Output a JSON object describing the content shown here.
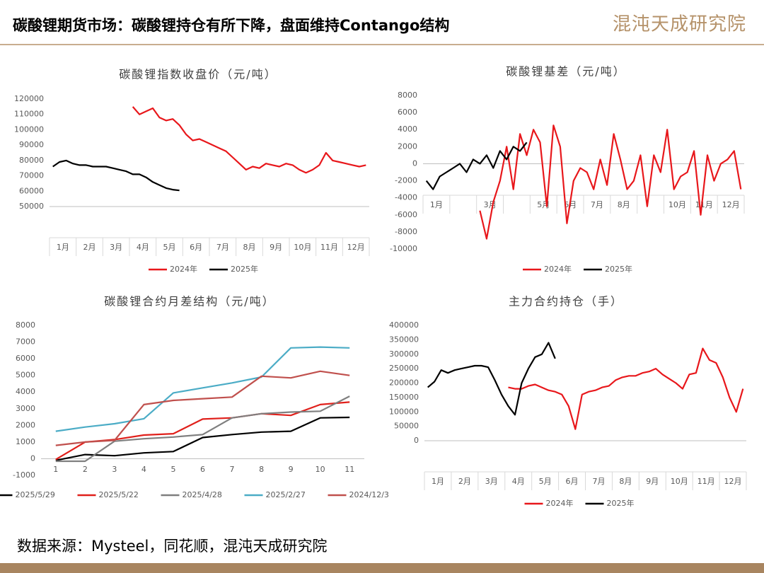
{
  "header": {
    "title": "碳酸锂期货市场：碳酸锂持仓有所下降，盘面维持Contango结构",
    "logo": "混沌天成研究院"
  },
  "footer": {
    "source": "数据来源：Mysteel，同花顺，混沌天成研究院"
  },
  "chart_data": [
    {
      "type": "line",
      "title": "碳酸锂指数收盘价（元/吨）",
      "legend": "bottom",
      "grid": false,
      "categories": [
        "1月",
        null,
        null,
        null,
        "2月",
        null,
        null,
        null,
        "3月",
        null,
        null,
        null,
        "4月",
        null,
        null,
        null,
        "5月",
        null,
        null,
        null,
        "6月",
        null,
        null,
        null,
        "7月",
        null,
        null,
        null,
        "8月",
        null,
        null,
        null,
        "9月",
        null,
        null,
        null,
        "10月",
        null,
        null,
        null,
        "11月",
        null,
        null,
        null,
        "12月",
        null,
        null,
        null
      ],
      "ylim": [
        50000,
        120000
      ],
      "yticks": [
        50000,
        60000,
        70000,
        80000,
        90000,
        100000,
        110000,
        120000
      ],
      "series": [
        {
          "name": "2024年",
          "color": "#e8171b",
          "values": [
            null,
            null,
            null,
            null,
            null,
            null,
            null,
            null,
            null,
            null,
            null,
            null,
            115000,
            110000,
            112000,
            114000,
            108000,
            106000,
            107000,
            103000,
            97000,
            93000,
            94000,
            92000,
            90000,
            88000,
            86000,
            82000,
            78000,
            74000,
            76000,
            75000,
            78000,
            77000,
            76000,
            78000,
            77000,
            74000,
            72000,
            74000,
            77000,
            85000,
            80000,
            79000,
            78000,
            77000,
            76000,
            77000
          ]
        },
        {
          "name": "2025年",
          "color": "#000000",
          "values": [
            76000,
            79000,
            80000,
            78000,
            77000,
            77000,
            76000,
            76000,
            76000,
            75000,
            74000,
            73000,
            71000,
            71000,
            69000,
            66000,
            64000,
            62000,
            61000,
            60500,
            null,
            null,
            null,
            null,
            null,
            null,
            null,
            null,
            null,
            null,
            null,
            null,
            null,
            null,
            null,
            null,
            null,
            null,
            null,
            null,
            null,
            null,
            null,
            null,
            null,
            null,
            null,
            null
          ]
        }
      ]
    },
    {
      "type": "line",
      "title": "碳酸锂基差（元/吨）",
      "legend": "bottom",
      "grid": false,
      "categories": [
        "1月",
        null,
        null,
        null,
        null,
        null,
        null,
        null,
        "3月",
        null,
        null,
        null,
        null,
        null,
        null,
        null,
        "5月",
        null,
        null,
        null,
        "6月",
        null,
        null,
        null,
        "7月",
        null,
        null,
        null,
        "8月",
        null,
        null,
        null,
        null,
        null,
        null,
        null,
        "10月",
        null,
        null,
        null,
        "11月",
        null,
        null,
        null,
        "12月",
        null,
        null,
        null
      ],
      "ylim": [
        -10000,
        8000
      ],
      "yticks": [
        -10000,
        -8000,
        -6000,
        -4000,
        -2000,
        0,
        2000,
        4000,
        6000,
        8000
      ],
      "series": [
        {
          "name": "2024年",
          "color": "#e8171b",
          "values": [
            null,
            null,
            null,
            null,
            null,
            null,
            null,
            null,
            -5500,
            -8800,
            -4500,
            -2000,
            2000,
            -3000,
            3500,
            1000,
            4000,
            2500,
            -5000,
            4500,
            2000,
            -7000,
            -2000,
            -500,
            -1000,
            -3000,
            500,
            -2500,
            3500,
            500,
            -3000,
            -2000,
            1000,
            -5000,
            1000,
            -1000,
            4000,
            -3000,
            -1500,
            -1000,
            1500,
            -6000,
            1000,
            -2000,
            0,
            500,
            1500,
            -3000
          ]
        },
        {
          "name": "2025年",
          "color": "#000000",
          "values": [
            -2000,
            -3000,
            -1500,
            -1000,
            -500,
            0,
            -1000,
            500,
            0,
            1000,
            -500,
            1500,
            500,
            2000,
            1500,
            2500,
            null,
            null,
            null,
            null,
            null,
            null,
            null,
            null,
            null,
            null,
            null,
            null,
            null,
            null,
            null,
            null,
            null,
            null,
            null,
            null,
            null,
            null,
            null,
            null,
            null,
            null,
            null,
            null,
            null,
            null,
            null,
            null
          ]
        }
      ]
    },
    {
      "type": "line",
      "title": "碳酸锂合约月差结构（元/吨）",
      "legend": "bottom",
      "grid": false,
      "categories": [
        1,
        2,
        3,
        4,
        5,
        6,
        7,
        8,
        9,
        10,
        11
      ],
      "ylim": [
        -1000,
        8000
      ],
      "yticks": [
        -1000,
        0,
        1000,
        2000,
        3000,
        4000,
        5000,
        6000,
        7000,
        8000
      ],
      "series": [
        {
          "name": "2025/5/29",
          "color": "#000000",
          "values": [
            -100,
            250,
            180,
            350,
            430,
            1270,
            1450,
            1600,
            1650,
            2450,
            2480
          ]
        },
        {
          "name": "2025/5/22",
          "color": "#e0201b",
          "values": [
            -50,
            1000,
            1150,
            1420,
            1500,
            2380,
            2450,
            2700,
            2600,
            3250,
            3400
          ]
        },
        {
          "name": "2025/4/28",
          "color": "#7f7f7f",
          "values": [
            -150,
            -150,
            1050,
            1200,
            1300,
            1450,
            2450,
            2700,
            2800,
            2850,
            3750
          ]
        },
        {
          "name": "2025/2/27",
          "color": "#4bacc6",
          "values": [
            1650,
            1900,
            2100,
            2400,
            3950,
            4250,
            4550,
            4900,
            6650,
            6700,
            6650
          ]
        },
        {
          "name": "2024/12/3",
          "color": "#c0504d",
          "values": [
            800,
            1000,
            1100,
            3250,
            3500,
            3600,
            3700,
            4950,
            4850,
            5250,
            5000
          ]
        }
      ]
    },
    {
      "type": "line",
      "title": "主力合约持仓（手）",
      "legend": "bottom",
      "grid": false,
      "categories": [
        "1月",
        null,
        null,
        null,
        "2月",
        null,
        null,
        null,
        "3月",
        null,
        null,
        null,
        "4月",
        null,
        null,
        null,
        "5月",
        null,
        null,
        null,
        "6月",
        null,
        null,
        null,
        "7月",
        null,
        null,
        null,
        "8月",
        null,
        null,
        null,
        "9月",
        null,
        null,
        null,
        "10月",
        null,
        null,
        null,
        "11月",
        null,
        null,
        null,
        "12月",
        null,
        null,
        null
      ],
      "ylim": [
        0,
        400000
      ],
      "yticks": [
        0,
        50000,
        100000,
        150000,
        200000,
        250000,
        300000,
        350000,
        400000
      ],
      "series": [
        {
          "name": "2024年",
          "color": "#e8171b",
          "values": [
            null,
            null,
            null,
            null,
            null,
            null,
            null,
            null,
            null,
            null,
            null,
            null,
            185000,
            180000,
            180000,
            190000,
            195000,
            185000,
            175000,
            170000,
            160000,
            120000,
            40000,
            160000,
            170000,
            175000,
            185000,
            190000,
            210000,
            220000,
            225000,
            225000,
            235000,
            240000,
            250000,
            230000,
            215000,
            200000,
            180000,
            230000,
            235000,
            320000,
            280000,
            270000,
            220000,
            150000,
            100000,
            180000
          ]
        },
        {
          "name": "2025年",
          "color": "#000000",
          "values": [
            185000,
            205000,
            245000,
            235000,
            245000,
            250000,
            255000,
            260000,
            260000,
            255000,
            210000,
            160000,
            120000,
            90000,
            200000,
            250000,
            290000,
            300000,
            340000,
            285000,
            null,
            null,
            null,
            null,
            null,
            null,
            null,
            null,
            null,
            null,
            null,
            null,
            null,
            null,
            null,
            null,
            null,
            null,
            null,
            null,
            null,
            null,
            null,
            null,
            null,
            null,
            null,
            null
          ]
        }
      ]
    }
  ]
}
